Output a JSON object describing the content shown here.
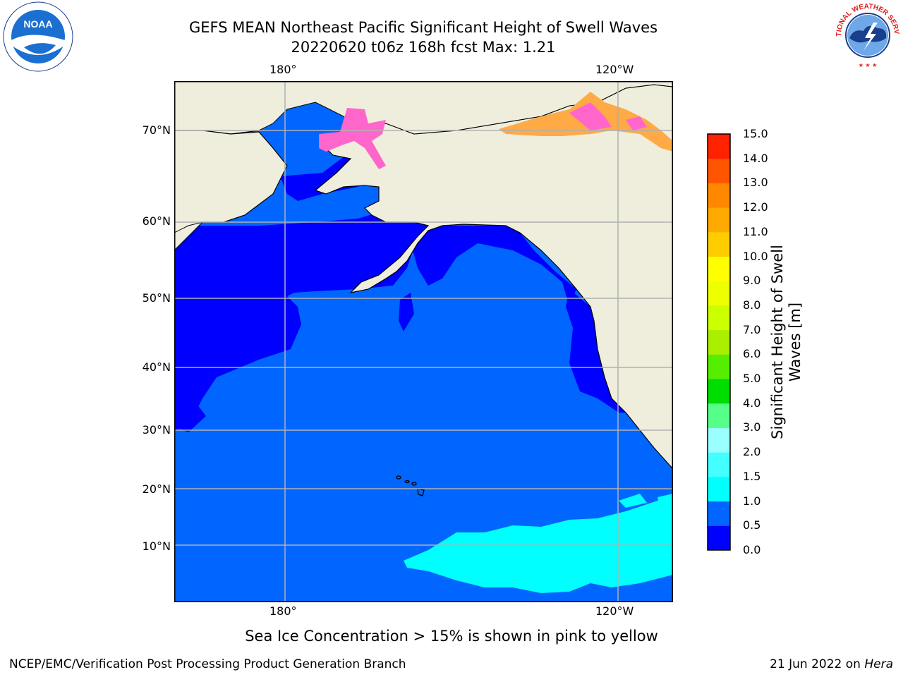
{
  "title": {
    "line1": "GEFS MEAN Northeast Pacific Significant Height of Swell Waves",
    "line2": "20220620 t06z 168h fcst   Max: 1.21"
  },
  "map": {
    "lon_labels_top": [
      "180°",
      "120°W"
    ],
    "lon_labels_bottom": [
      "180°",
      "120°W"
    ],
    "lat_labels": [
      "70°N",
      "60°N",
      "50°N",
      "40°N",
      "30°N",
      "20°N",
      "10°N"
    ],
    "colors": {
      "land": "#efeedd",
      "ocean_0_0_5": "#0000ff",
      "ocean_0_5_1_0": "#0066ff",
      "ocean_1_0_1_5": "#00ffff",
      "ice_pink": "#ff66cc",
      "ice_orange": "#ffaa44",
      "grid": "#b0b0b0"
    }
  },
  "colorbar": {
    "title": "Significant Height of Swell Waves [m]",
    "ticks": [
      "15.0",
      "14.0",
      "13.0",
      "12.0",
      "11.0",
      "10.0",
      "9.0",
      "8.0",
      "7.0",
      "6.0",
      "5.0",
      "4.0",
      "3.0",
      "2.0",
      "1.5",
      "1.0",
      "0.5",
      "0.0"
    ],
    "bin_colors": [
      "#0000ff",
      "#0066ff",
      "#00ffff",
      "#44ffff",
      "#99ffff",
      "#55ff88",
      "#00dd00",
      "#55ee00",
      "#aaee00",
      "#ccff00",
      "#eeff00",
      "#ffff00",
      "#ffcc00",
      "#ffaa00",
      "#ff8800",
      "#ff5500",
      "#ff2200"
    ]
  },
  "note": "Sea Ice Concentration > 15% is shown in pink to yellow",
  "footer": {
    "left": "NCEP/EMC/Verification Post Processing Product Generation Branch",
    "right_date": "21 Jun 2022 on ",
    "right_host": "Hera"
  },
  "logos": {
    "noaa_text": "NOAA",
    "nws_text": "NATIONAL WEATHER SERVICE"
  }
}
